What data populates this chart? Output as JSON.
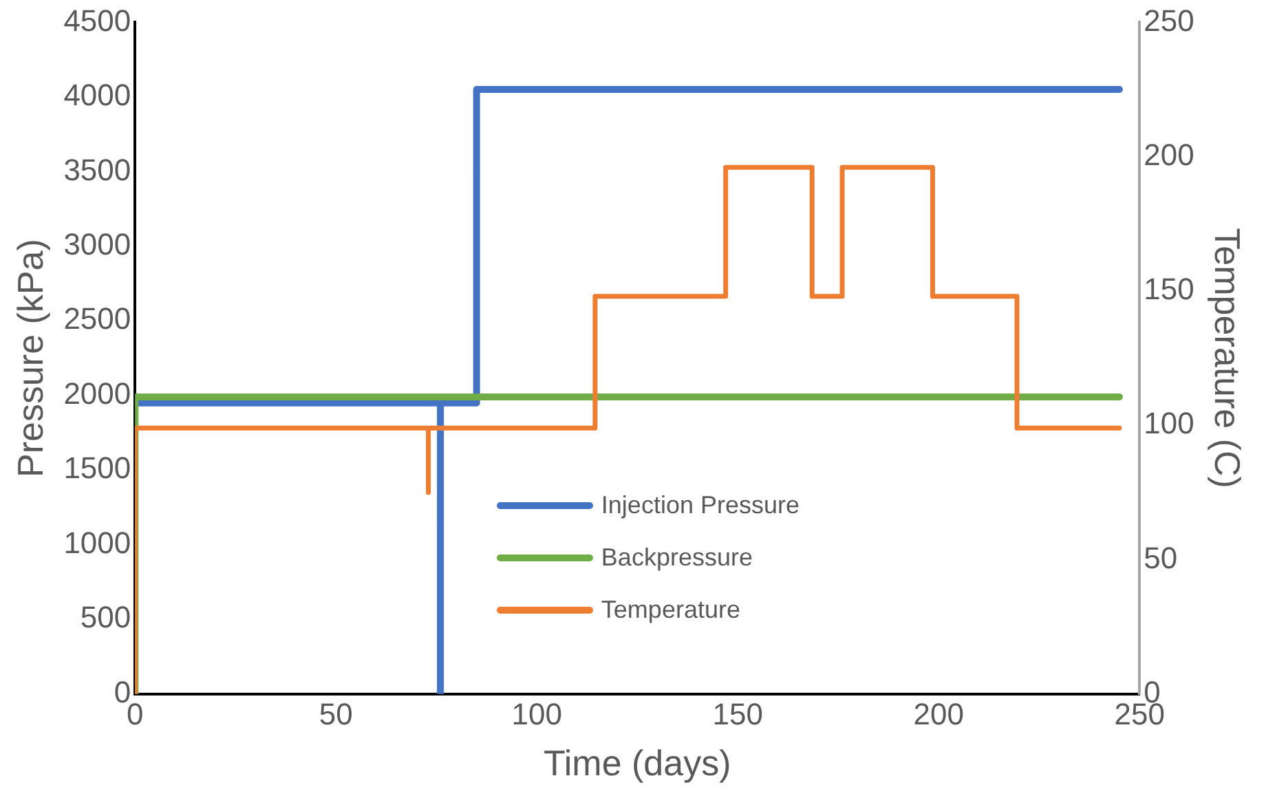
{
  "chart_data": {
    "type": "line",
    "xlabel": "Time (days)",
    "ylabel": "Pressure (kPa)",
    "y2label": "Temperature (C)",
    "xlim": [
      0,
      250
    ],
    "xticks": [
      0,
      50,
      100,
      150,
      200,
      250
    ],
    "ylim": [
      0,
      4500
    ],
    "yticks": [
      0,
      500,
      1000,
      1500,
      2000,
      2500,
      3000,
      3500,
      4000,
      4500
    ],
    "y2lim": [
      0,
      250
    ],
    "y2ticks": [
      0,
      50,
      100,
      150,
      200,
      250
    ],
    "grid": false,
    "legend": "center",
    "marker": "none",
    "line_style": "solid",
    "series": [
      {
        "name": "Injection Pressure",
        "color": "#4472c4",
        "x": [
          0,
          76,
          76,
          76,
          85,
          85,
          245
        ],
        "values": [
          1950,
          1950,
          0,
          1950,
          1950,
          4050,
          4050
        ]
      },
      {
        "name": "Backpressure",
        "color": "#70ad47",
        "x": [
          0,
          0,
          245
        ],
        "values": [
          0,
          1990,
          1990
        ]
      },
      {
        "name": "Temperature",
        "color": "#ed7d31",
        "axis": "y2",
        "x": [
          0,
          0,
          73,
          73,
          73,
          114.5,
          114.5,
          147,
          147,
          168.5,
          168.5,
          176,
          176,
          198.5,
          198.5,
          219.5,
          219.5,
          245
        ],
        "values": [
          0,
          99,
          99,
          75,
          99,
          99,
          148,
          148,
          196,
          196,
          148,
          148,
          196,
          196,
          148,
          148,
          99,
          99
        ]
      }
    ]
  }
}
